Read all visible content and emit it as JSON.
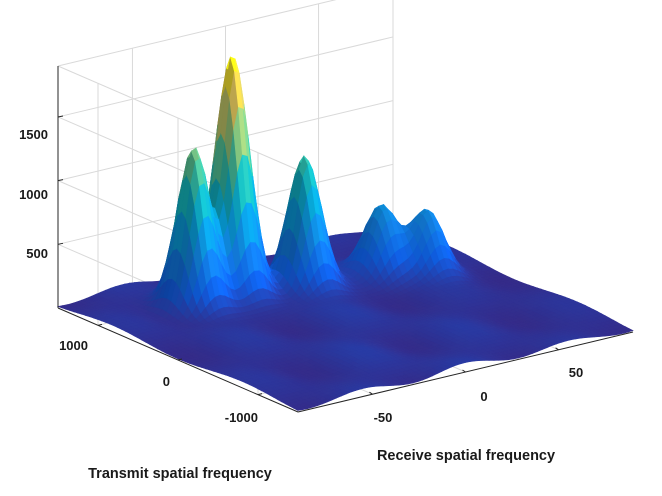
{
  "chart_data": {
    "type": "surface",
    "title": "",
    "xlabel": "Receive spatial frequency",
    "ylabel": "Transmit spatial frequency",
    "zlabel": "",
    "xlim": [
      -90,
      90
    ],
    "ylim": [
      -1500,
      1500
    ],
    "zlim": [
      0,
      1900
    ],
    "xticks": [
      -50,
      0,
      50
    ],
    "yticks": [
      -1000,
      0,
      1000
    ],
    "zticks": [
      500,
      1000,
      1500
    ],
    "grid": true,
    "colormap": "parula",
    "peaks": [
      {
        "receive": -45,
        "transmit": 850,
        "height": 1250
      },
      {
        "receive": -22,
        "transmit": 900,
        "height": 1850
      },
      {
        "receive": 8,
        "transmit": 700,
        "height": 1050
      },
      {
        "receive": 45,
        "transmit": 600,
        "height": 550
      },
      {
        "receive": 62,
        "transmit": 420,
        "height": 500
      }
    ],
    "background_height": 80
  }
}
